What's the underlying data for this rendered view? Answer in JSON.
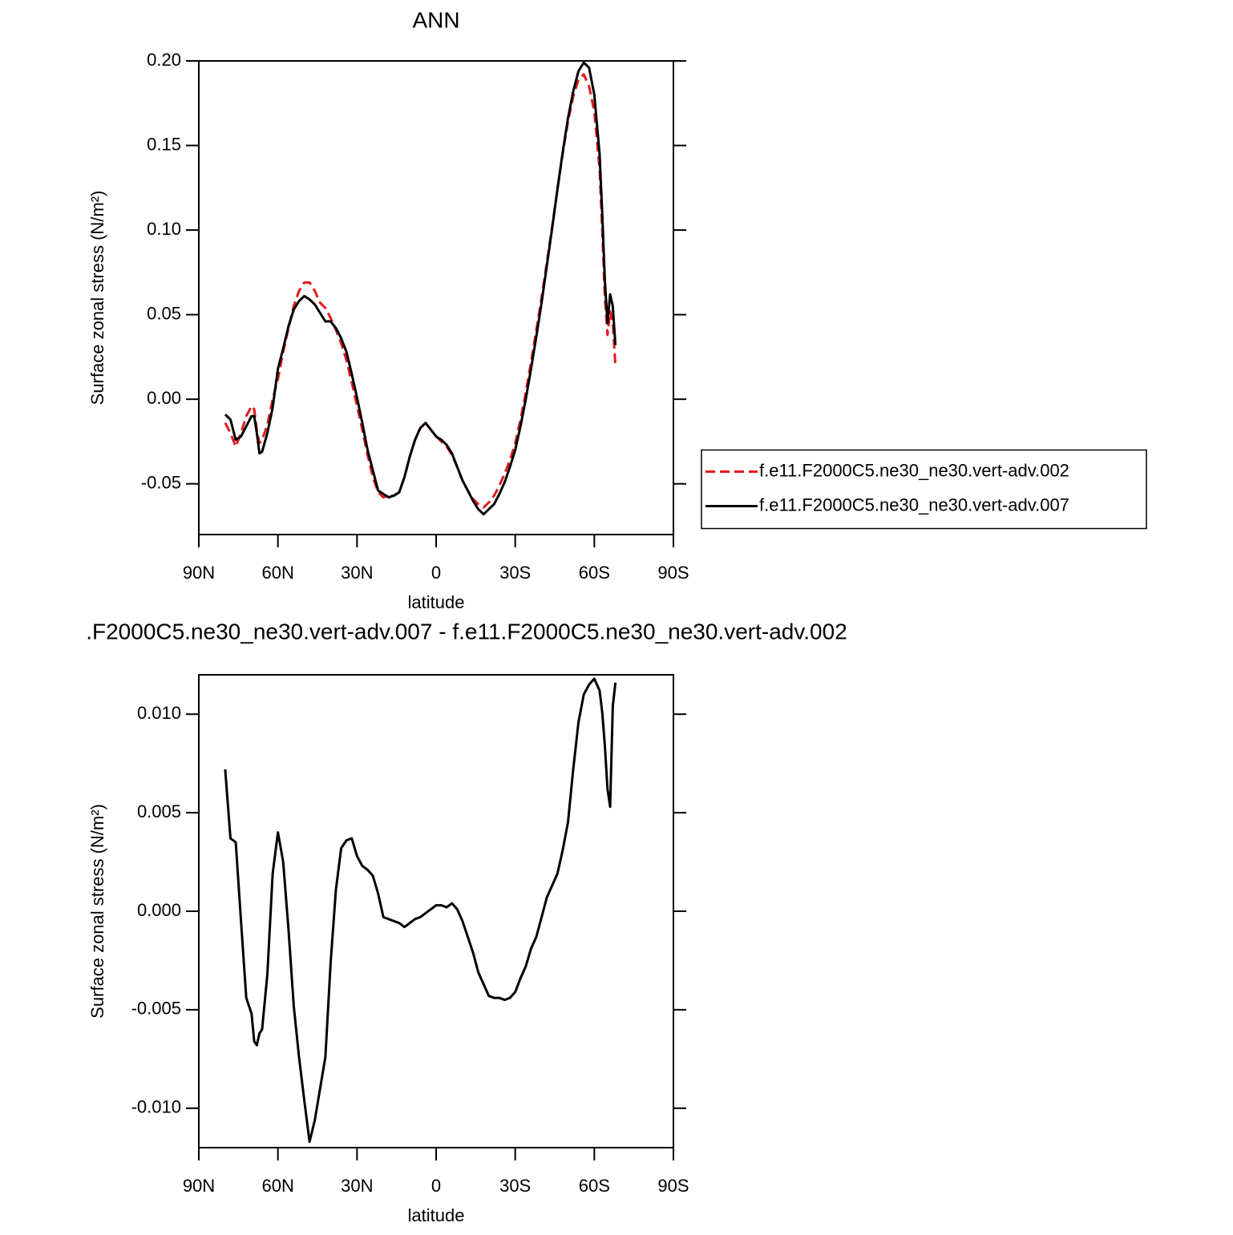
{
  "chart_data": [
    {
      "type": "line",
      "title": "ANN",
      "xlabel": "latitude",
      "ylabel": "Surface zonal stress (N/m²)",
      "x": [
        80,
        78,
        76,
        74,
        72,
        70,
        69,
        68,
        67,
        66,
        64,
        62,
        60,
        58,
        56,
        54,
        52,
        50,
        48,
        46,
        44,
        42,
        40,
        38,
        36,
        34,
        32,
        30,
        28,
        26,
        24,
        22,
        20,
        18,
        16,
        14,
        12,
        10,
        8,
        6,
        4,
        2,
        0,
        -2,
        -4,
        -6,
        -8,
        -10,
        -12,
        -14,
        -16,
        -18,
        -20,
        -22,
        -24,
        -26,
        -28,
        -30,
        -32,
        -34,
        -36,
        -38,
        -40,
        -42,
        -44,
        -46,
        -48,
        -50,
        -52,
        -54,
        -56,
        -58,
        -60,
        -62,
        -63,
        -64,
        -65,
        -66,
        -67,
        -68
      ],
      "series": [
        {
          "name": "f.e11.F2000C5.ne30_ne30.vert-adv.002",
          "color": "#e41a1c",
          "dash": true,
          "values": [
            -0.014,
            -0.02,
            -0.028,
            -0.02,
            -0.01,
            -0.004,
            -0.006,
            -0.018,
            -0.026,
            -0.024,
            -0.015,
            0.0,
            0.012,
            0.028,
            0.042,
            0.055,
            0.064,
            0.069,
            0.069,
            0.064,
            0.057,
            0.054,
            0.048,
            0.041,
            0.033,
            0.023,
            0.01,
            -0.004,
            -0.018,
            -0.033,
            -0.046,
            -0.055,
            -0.058,
            -0.057,
            -0.057,
            -0.055,
            -0.046,
            -0.034,
            -0.024,
            -0.017,
            -0.014,
            -0.018,
            -0.022,
            -0.025,
            -0.028,
            -0.033,
            -0.04,
            -0.048,
            -0.054,
            -0.059,
            -0.062,
            -0.064,
            -0.061,
            -0.057,
            -0.051,
            -0.044,
            -0.036,
            -0.026,
            -0.012,
            0.004,
            0.022,
            0.041,
            0.06,
            0.081,
            0.102,
            0.124,
            0.145,
            0.164,
            0.179,
            0.189,
            0.192,
            0.185,
            0.17,
            0.136,
            0.1,
            0.06,
            0.038,
            0.052,
            0.045,
            0.02
          ]
        },
        {
          "name": "f.e11.F2000C5.ne30_ne30.vert-adv.007",
          "color": "#000000",
          "dash": false,
          "values": [
            -0.009,
            -0.012,
            -0.024,
            -0.022,
            -0.016,
            -0.01,
            -0.01,
            -0.02,
            -0.032,
            -0.031,
            -0.02,
            -0.005,
            0.018,
            0.03,
            0.043,
            0.053,
            0.058,
            0.061,
            0.059,
            0.056,
            0.051,
            0.046,
            0.046,
            0.042,
            0.036,
            0.028,
            0.015,
            0.001,
            -0.014,
            -0.03,
            -0.042,
            -0.054,
            -0.056,
            -0.058,
            -0.057,
            -0.055,
            -0.046,
            -0.034,
            -0.024,
            -0.017,
            -0.014,
            -0.018,
            -0.022,
            -0.024,
            -0.027,
            -0.032,
            -0.04,
            -0.048,
            -0.054,
            -0.06,
            -0.065,
            -0.068,
            -0.065,
            -0.062,
            -0.056,
            -0.049,
            -0.04,
            -0.03,
            -0.016,
            0.0,
            0.018,
            0.037,
            0.057,
            0.079,
            0.101,
            0.124,
            0.146,
            0.166,
            0.182,
            0.194,
            0.199,
            0.196,
            0.18,
            0.145,
            0.11,
            0.07,
            0.045,
            0.062,
            0.055,
            0.032
          ]
        }
      ],
      "xlim": [
        90,
        -90
      ],
      "xticks": [
        {
          "value": 90,
          "label": "90N"
        },
        {
          "value": 60,
          "label": "60N"
        },
        {
          "value": 30,
          "label": "30N"
        },
        0,
        {
          "value": -30,
          "label": "30S"
        },
        {
          "value": -60,
          "label": "60S"
        },
        {
          "value": -90,
          "label": "90S"
        }
      ],
      "ylim": [
        -0.08,
        0.2
      ],
      "yticks": [
        {
          "value": 0.2,
          "label": "0.20"
        },
        {
          "value": 0.15,
          "label": "0.15"
        },
        {
          "value": 0.1,
          "label": "0.10"
        },
        {
          "value": 0.05,
          "label": "0.05"
        },
        {
          "value": 0,
          "label": "0.00"
        },
        {
          "value": -0.05,
          "label": "-0.05"
        }
      ],
      "legend": "right"
    },
    {
      "type": "line",
      "title": ".F2000C5.ne30_ne30.vert-adv.007 - f.e11.F2000C5.ne30_ne30.vert-adv.002",
      "xlabel": "latitude",
      "ylabel": "Surface zonal stress (N/m²)",
      "x": [
        80,
        78,
        76,
        74,
        72,
        70,
        69,
        68,
        67,
        66,
        64,
        62,
        60,
        58,
        56,
        54,
        52,
        50,
        48,
        46,
        44,
        42,
        40,
        38,
        36,
        34,
        32,
        30,
        28,
        26,
        24,
        22,
        20,
        18,
        16,
        14,
        12,
        10,
        8,
        6,
        4,
        2,
        0,
        -2,
        -4,
        -6,
        -8,
        -10,
        -12,
        -14,
        -16,
        -18,
        -20,
        -22,
        -24,
        -26,
        -28,
        -30,
        -32,
        -34,
        -36,
        -38,
        -40,
        -42,
        -44,
        -46,
        -48,
        -50,
        -52,
        -54,
        -56,
        -58,
        -60,
        -62,
        -63,
        -64,
        -65,
        -66,
        -67,
        -68
      ],
      "series": [
        {
          "color": "#000000",
          "dash": false,
          "values": [
            0.0072,
            0.0037,
            0.0035,
            -0.0005,
            -0.0044,
            -0.0052,
            -0.0066,
            -0.0068,
            -0.0062,
            -0.006,
            -0.0032,
            0.0019,
            0.004,
            0.0025,
            -0.0009,
            -0.0048,
            -0.0074,
            -0.0096,
            -0.0117,
            -0.0106,
            -0.009,
            -0.0074,
            -0.0026,
            0.0011,
            0.0032,
            0.0036,
            0.0037,
            0.0028,
            0.0023,
            0.0021,
            0.0018,
            0.0009,
            -0.0003,
            -0.0004,
            -0.0005,
            -0.0006,
            -0.0008,
            -0.0006,
            -0.0004,
            -0.0003,
            -0.0001,
            0.0001,
            0.0003,
            0.0003,
            0.0002,
            0.0004,
            0.0001,
            -0.0005,
            -0.0013,
            -0.0021,
            -0.0031,
            -0.0037,
            -0.0043,
            -0.0044,
            -0.0044,
            -0.0045,
            -0.0044,
            -0.0041,
            -0.0034,
            -0.0028,
            -0.0019,
            -0.0013,
            -0.0003,
            0.0007,
            0.0013,
            0.0019,
            0.0031,
            0.0045,
            0.0072,
            0.0096,
            0.011,
            0.0115,
            0.0118,
            0.0112,
            0.0101,
            0.0084,
            0.0062,
            0.0053,
            0.0104,
            0.0116
          ]
        }
      ],
      "xlim": [
        90,
        -90
      ],
      "xticks": [
        {
          "value": 90,
          "label": "90N"
        },
        {
          "value": 60,
          "label": "60N"
        },
        {
          "value": 30,
          "label": "30N"
        },
        0,
        {
          "value": -30,
          "label": "30S"
        },
        {
          "value": -60,
          "label": "60S"
        },
        {
          "value": -90,
          "label": "90S"
        }
      ],
      "ylim": [
        -0.012,
        0.012
      ],
      "yticks": [
        {
          "value": 0.01,
          "label": "0.010"
        },
        {
          "value": 0.005,
          "label": "0.005"
        },
        {
          "value": 0,
          "label": "0.000"
        },
        {
          "value": -0.005,
          "label": "-0.005"
        },
        {
          "value": -0.01,
          "label": "-0.010"
        }
      ]
    }
  ]
}
